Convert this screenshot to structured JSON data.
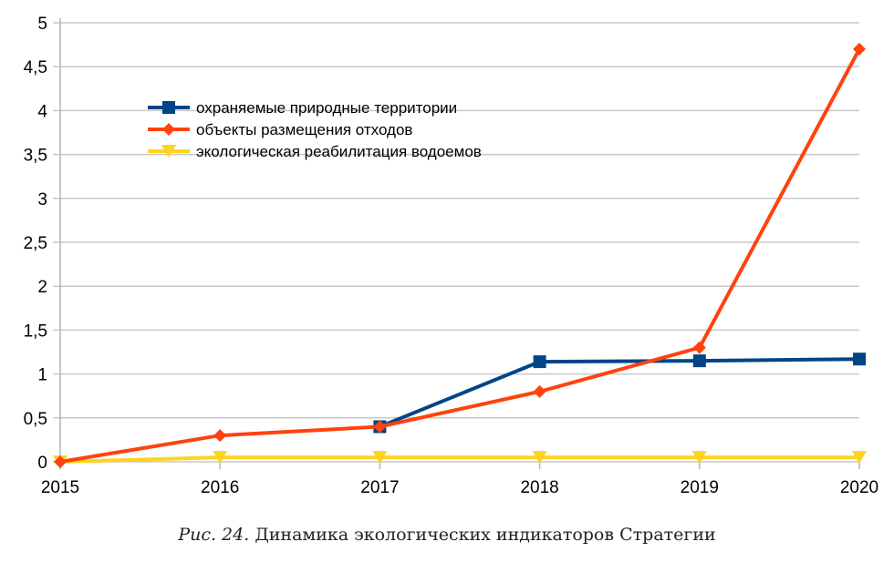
{
  "chart_data": {
    "type": "line",
    "x": [
      "2015",
      "2016",
      "2017",
      "2018",
      "2019",
      "2020"
    ],
    "ylim": [
      0,
      5
    ],
    "yticks": [
      "0",
      "0,5",
      "1",
      "1,5",
      "2",
      "2,5",
      "3",
      "3,5",
      "4",
      "4,5",
      "5"
    ],
    "grid": true,
    "legend_position": "top-left",
    "series": [
      {
        "name": "охраняемые природные территории",
        "color": "#004586",
        "marker": "square",
        "values": [
          null,
          null,
          0.4,
          1.14,
          1.15,
          1.17
        ]
      },
      {
        "name": "объекты размещения отходов",
        "color": "#ff420e",
        "marker": "diamond",
        "values": [
          0,
          0.3,
          0.4,
          0.8,
          1.3,
          4.7
        ]
      },
      {
        "name": "экологическая реабилитация водоемов",
        "color": "#ffd320",
        "marker": "triangle-down",
        "values": [
          0,
          0.05,
          0.05,
          0.05,
          0.05,
          0.05
        ]
      }
    ]
  },
  "caption": {
    "prefix": "Рис. 24.",
    "text": " Динамика экологических индикаторов Стратегии"
  }
}
